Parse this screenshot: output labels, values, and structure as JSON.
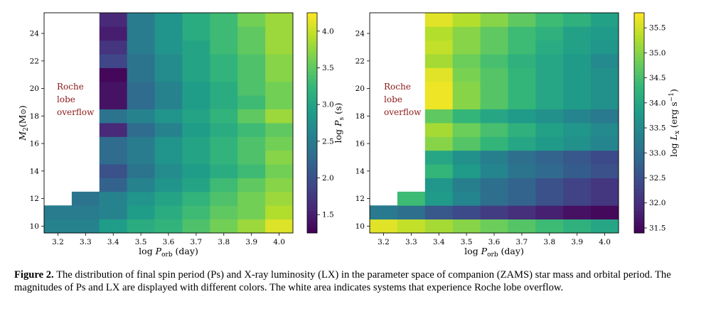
{
  "chart_data": [
    {
      "type": "heatmap",
      "x": [
        3.2,
        3.3,
        3.4,
        3.5,
        3.6,
        3.7,
        3.8,
        3.9,
        4.0
      ],
      "y": [
        10,
        11,
        12,
        13,
        14,
        15,
        16,
        17,
        18,
        19,
        20,
        21,
        22,
        23,
        24,
        25
      ],
      "xticks": [
        "3.2",
        "3.3",
        "3.4",
        "3.5",
        "3.6",
        "3.7",
        "3.8",
        "3.9",
        "4.0"
      ],
      "yticks": [
        "10",
        "12",
        "14",
        "16",
        "18",
        "20",
        "22",
        "24"
      ],
      "xlim": [
        3.15,
        4.05
      ],
      "ylim": [
        9.5,
        25.5
      ],
      "xlabel_main": "log ",
      "xlabel_sym": "P",
      "xlabel_sub": "orb",
      "xlabel_unit": " (day)",
      "ylabel_sym": "M",
      "ylabel_sub": "2",
      "ylabel_unit": "(M",
      "ylabel_sun": "⊙",
      "ylabel_close": ")",
      "annotation": [
        "Roche",
        "lobe",
        "overflow"
      ],
      "colorbar": {
        "label_main": "log ",
        "label_sym": "P",
        "label_sub": "s",
        "label_unit": " (s)",
        "range": [
          1.25,
          4.25
        ],
        "ticks": [
          "1.5",
          "2.0",
          "2.5",
          "3.0",
          "3.5",
          "4.0"
        ],
        "tick_values": [
          1.5,
          2.0,
          2.5,
          3.0,
          3.5,
          4.0
        ]
      },
      "z": [
        [
          2.6,
          2.6,
          2.9,
          3.1,
          3.2,
          3.4,
          3.6,
          3.8,
          4.1
        ],
        [
          2.5,
          2.5,
          2.6,
          2.9,
          3.1,
          3.3,
          3.5,
          3.6,
          3.9
        ],
        [
          null,
          2.4,
          2.6,
          2.8,
          3.0,
          3.2,
          3.4,
          3.6,
          3.8
        ],
        [
          null,
          null,
          2.2,
          2.6,
          2.8,
          3.0,
          3.3,
          3.5,
          3.7
        ],
        [
          null,
          null,
          2.0,
          2.4,
          2.7,
          2.9,
          3.1,
          3.3,
          3.6
        ],
        [
          null,
          null,
          2.3,
          2.5,
          2.8,
          3.0,
          3.2,
          3.4,
          3.7
        ],
        [
          null,
          null,
          2.3,
          2.5,
          2.8,
          3.0,
          3.2,
          3.4,
          3.6
        ],
        [
          null,
          null,
          1.6,
          2.3,
          2.6,
          2.9,
          3.1,
          3.3,
          3.5
        ],
        [
          null,
          null,
          2.4,
          2.6,
          2.8,
          3.0,
          3.2,
          3.5,
          3.8
        ],
        [
          null,
          null,
          1.4,
          2.3,
          2.6,
          2.9,
          3.1,
          3.3,
          3.6
        ],
        [
          null,
          null,
          1.4,
          2.3,
          2.6,
          2.9,
          3.1,
          3.4,
          3.6
        ],
        [
          null,
          null,
          1.3,
          2.4,
          2.7,
          3.0,
          3.2,
          3.4,
          3.7
        ],
        [
          null,
          null,
          1.9,
          2.4,
          2.7,
          3.0,
          3.2,
          3.4,
          3.7
        ],
        [
          null,
          null,
          1.7,
          2.5,
          2.8,
          3.0,
          3.3,
          3.5,
          3.8
        ],
        [
          null,
          null,
          1.5,
          2.5,
          2.8,
          3.1,
          3.3,
          3.5,
          3.8
        ],
        [
          null,
          null,
          1.6,
          2.5,
          2.8,
          3.1,
          3.3,
          3.6,
          3.8
        ]
      ],
      "roche_cells": [
        [
          0,
          2
        ],
        [
          0,
          3
        ],
        [
          0,
          4
        ],
        [
          0,
          5
        ],
        [
          0,
          6
        ],
        [
          0,
          7
        ],
        [
          0,
          8
        ],
        [
          0,
          9
        ],
        [
          0,
          10
        ],
        [
          0,
          11
        ],
        [
          0,
          12
        ],
        [
          0,
          13
        ],
        [
          0,
          14
        ],
        [
          0,
          15
        ],
        [
          1,
          3
        ],
        [
          1,
          4
        ],
        [
          1,
          5
        ],
        [
          1,
          6
        ],
        [
          1,
          7
        ],
        [
          1,
          8
        ],
        [
          1,
          9
        ],
        [
          1,
          10
        ],
        [
          1,
          11
        ],
        [
          1,
          12
        ],
        [
          1,
          13
        ],
        [
          1,
          14
        ],
        [
          1,
          15
        ]
      ]
    },
    {
      "type": "heatmap",
      "x": [
        3.2,
        3.3,
        3.4,
        3.5,
        3.6,
        3.7,
        3.8,
        3.9,
        4.0
      ],
      "y": [
        10,
        11,
        12,
        13,
        14,
        15,
        16,
        17,
        18,
        19,
        20,
        21,
        22,
        23,
        24,
        25
      ],
      "xticks": [
        "3.2",
        "3.3",
        "3.4",
        "3.5",
        "3.6",
        "3.7",
        "3.8",
        "3.9",
        "4.0"
      ],
      "yticks": [
        "10",
        "12",
        "14",
        "16",
        "18",
        "20",
        "22",
        "24"
      ],
      "xlim": [
        3.15,
        4.05
      ],
      "ylim": [
        9.5,
        25.5
      ],
      "xlabel_main": "log ",
      "xlabel_sym": "P",
      "xlabel_sub": "orb",
      "xlabel_unit": " (day)",
      "annotation": [
        "Roche",
        "lobe",
        "overflow"
      ],
      "colorbar": {
        "label_main": "log ",
        "label_sym": "L",
        "label_sub": "x",
        "label_unit": " (erg s",
        "label_sup": "−1",
        "label_close": ")",
        "range": [
          31.4,
          35.8
        ],
        "ticks": [
          "31.5",
          "32.0",
          "32.5",
          "33.0",
          "33.5",
          "34.0",
          "34.5",
          "35.0",
          "35.5"
        ],
        "tick_values": [
          31.5,
          32.0,
          32.5,
          33.0,
          33.5,
          34.0,
          34.5,
          35.0,
          35.5
        ]
      },
      "z": [
        [
          35.6,
          35.4,
          35.2,
          35.0,
          34.8,
          34.6,
          34.4,
          34.2,
          34.0
        ],
        [
          33.2,
          33.0,
          32.6,
          32.4,
          32.2,
          32.0,
          31.8,
          31.6,
          31.5
        ],
        [
          null,
          34.4,
          33.8,
          33.4,
          33.0,
          32.8,
          32.5,
          32.3,
          32.1
        ],
        [
          null,
          null,
          33.7,
          33.3,
          33.0,
          32.8,
          32.5,
          32.3,
          32.1
        ],
        [
          null,
          null,
          34.3,
          33.8,
          33.4,
          33.1,
          32.9,
          32.7,
          32.5
        ],
        [
          null,
          null,
          34.0,
          33.6,
          33.3,
          33.0,
          32.8,
          32.6,
          32.4
        ],
        [
          null,
          null,
          35.0,
          34.6,
          34.3,
          34.0,
          33.8,
          33.6,
          33.4
        ],
        [
          null,
          null,
          35.2,
          34.8,
          34.5,
          34.2,
          33.9,
          33.7,
          33.5
        ],
        [
          null,
          null,
          34.7,
          34.3,
          34.0,
          33.8,
          33.6,
          33.4,
          33.2
        ],
        [
          null,
          null,
          35.7,
          35.0,
          34.6,
          34.3,
          34.0,
          33.8,
          33.6
        ],
        [
          null,
          null,
          35.7,
          35.0,
          34.6,
          34.3,
          34.0,
          33.8,
          33.6
        ],
        [
          null,
          null,
          35.6,
          34.9,
          34.6,
          34.3,
          34.0,
          33.8,
          33.6
        ],
        [
          null,
          null,
          35.2,
          34.8,
          34.5,
          34.2,
          34.0,
          33.8,
          33.5
        ],
        [
          null,
          null,
          35.4,
          35.0,
          34.7,
          34.4,
          34.1,
          33.9,
          33.7
        ],
        [
          null,
          null,
          35.3,
          35.0,
          34.7,
          34.4,
          34.2,
          33.9,
          33.8
        ],
        [
          null,
          null,
          35.6,
          35.3,
          35.0,
          34.7,
          34.4,
          34.2,
          33.9
        ]
      ],
      "roche_cells": [
        [
          0,
          2
        ],
        [
          0,
          3
        ],
        [
          0,
          4
        ],
        [
          0,
          5
        ],
        [
          0,
          6
        ],
        [
          0,
          7
        ],
        [
          0,
          8
        ],
        [
          0,
          9
        ],
        [
          0,
          10
        ],
        [
          0,
          11
        ],
        [
          0,
          12
        ],
        [
          0,
          13
        ],
        [
          0,
          14
        ],
        [
          0,
          15
        ],
        [
          1,
          3
        ],
        [
          1,
          4
        ],
        [
          1,
          5
        ],
        [
          1,
          6
        ],
        [
          1,
          7
        ],
        [
          1,
          8
        ],
        [
          1,
          9
        ],
        [
          1,
          10
        ],
        [
          1,
          11
        ],
        [
          1,
          12
        ],
        [
          1,
          13
        ],
        [
          1,
          14
        ],
        [
          1,
          15
        ]
      ]
    }
  ],
  "caption": {
    "label": "Figure 2.",
    "text": "The distribution of final spin period (Ps) and X-ray luminosity (LX) in the parameter space of companion (ZAMS) star mass and orbital period. The magnitudes of Ps and LX are displayed with different colors. The white area indicates systems that experience Roche lobe overflow."
  }
}
